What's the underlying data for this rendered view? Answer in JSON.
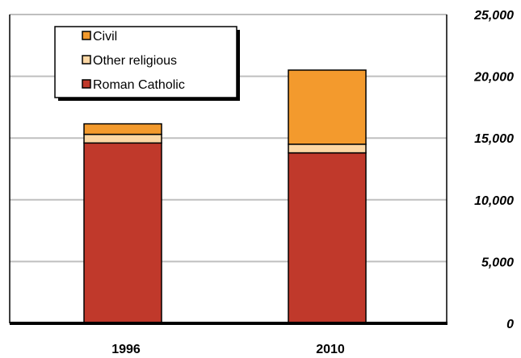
{
  "chart_data": {
    "type": "bar",
    "stacked": true,
    "categories": [
      "1996",
      "2010"
    ],
    "series": [
      {
        "name": "Roman Catholic",
        "values": [
          14600,
          13800
        ],
        "color": "#C0392B"
      },
      {
        "name": "Other religious",
        "values": [
          700,
          700
        ],
        "color": "#FCD7A4"
      },
      {
        "name": "Civil",
        "values": [
          850,
          6000
        ],
        "color": "#F39A2D"
      }
    ],
    "legend_order": [
      "Civil",
      "Other religious",
      "Roman Catholic"
    ],
    "legend_position": "top-left",
    "y_axis_position": "right",
    "ylim": [
      0,
      25000
    ],
    "yticks": [
      0,
      5000,
      10000,
      15000,
      20000,
      25000
    ],
    "ytick_labels": [
      "0",
      "5,000",
      "10,000",
      "15,000",
      "20,000",
      "25,000"
    ],
    "grid": true,
    "gridline_color": "#BFBFBF",
    "title": "",
    "xlabel": "",
    "ylabel": ""
  }
}
